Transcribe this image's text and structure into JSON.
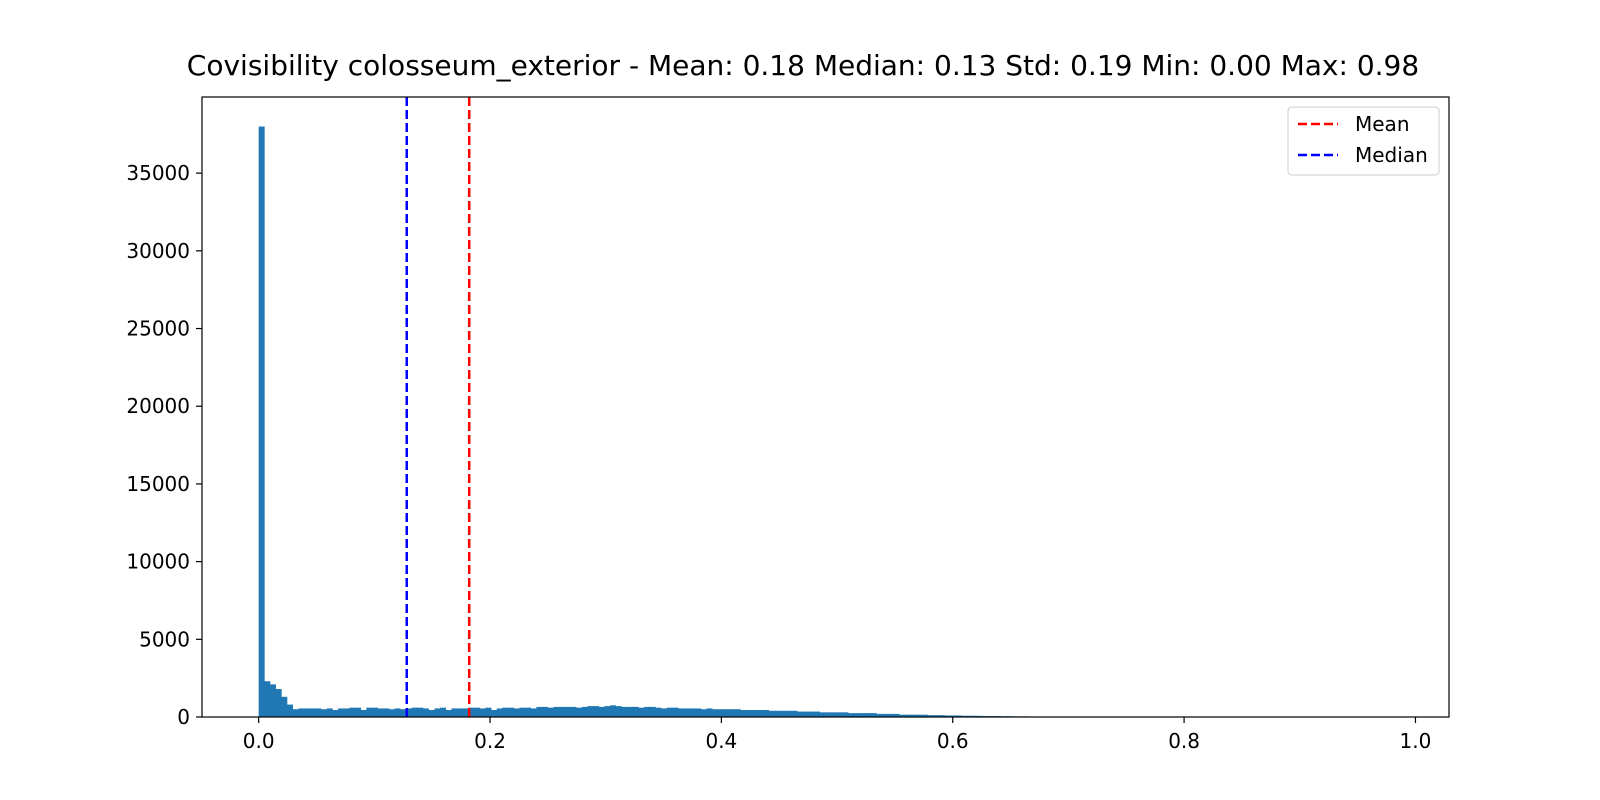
{
  "chart_data": {
    "type": "bar",
    "title": "Covisibility colosseum_exterior - Mean: 0.18 Median: 0.13 Std: 0.19 Min: 0.00 Max: 0.98",
    "xlabel": "",
    "ylabel": "",
    "xlim": [
      -0.049,
      1.029
    ],
    "ylim": [
      0,
      39900
    ],
    "xticks": [
      0.0,
      0.2,
      0.4,
      0.6,
      0.8,
      1.0
    ],
    "xtick_labels": [
      "0.0",
      "0.2",
      "0.4",
      "0.6",
      "0.8",
      "1.0"
    ],
    "yticks": [
      0,
      5000,
      10000,
      15000,
      20000,
      25000,
      30000,
      35000
    ],
    "ytick_labels": [
      "0",
      "5000",
      "10000",
      "15000",
      "20000",
      "25000",
      "30000",
      "35000"
    ],
    "bin_start": 0.0,
    "bin_width": 0.0049,
    "values": [
      38000,
      2300,
      2100,
      1800,
      1300,
      800,
      500,
      550,
      550,
      550,
      550,
      500,
      550,
      450,
      550,
      550,
      600,
      600,
      450,
      600,
      600,
      550,
      550,
      500,
      550,
      500,
      550,
      600,
      600,
      550,
      450,
      550,
      600,
      450,
      550,
      550,
      550,
      600,
      600,
      550,
      600,
      450,
      550,
      600,
      600,
      550,
      600,
      600,
      550,
      650,
      650,
      600,
      650,
      650,
      650,
      650,
      600,
      650,
      700,
      700,
      650,
      700,
      750,
      700,
      650,
      650,
      650,
      600,
      650,
      650,
      600,
      550,
      600,
      600,
      550,
      550,
      550,
      550,
      500,
      550,
      500,
      500,
      500,
      500,
      500,
      450,
      450,
      450,
      450,
      450,
      400,
      400,
      400,
      400,
      400,
      350,
      350,
      350,
      350,
      300,
      300,
      300,
      300,
      300,
      250,
      250,
      250,
      250,
      250,
      200,
      200,
      200,
      200,
      150,
      150,
      150,
      150,
      150,
      120,
      120,
      120,
      100,
      100,
      100,
      80,
      80,
      80,
      70,
      60,
      60,
      60,
      50,
      50,
      40,
      40,
      40,
      30,
      30,
      30,
      25,
      25,
      20,
      20,
      20,
      15,
      15,
      15,
      10,
      10,
      10,
      10,
      8,
      8,
      6,
      6,
      5,
      5,
      4,
      4,
      3,
      3,
      3,
      2,
      2,
      2,
      2,
      1,
      1,
      1,
      1,
      1,
      1,
      1,
      1,
      1,
      1,
      1,
      1,
      1,
      1
    ],
    "bar_color": "#1f77b4",
    "reference_lines": [
      {
        "name": "Mean",
        "x": 0.182,
        "color": "#ff0000",
        "style": "dashed"
      },
      {
        "name": "Median",
        "x": 0.128,
        "color": "#0000ff",
        "style": "dashed"
      }
    ],
    "legend": {
      "placement": "top-right",
      "entries": [
        {
          "label": "Mean",
          "color": "#ff0000"
        },
        {
          "label": "Median",
          "color": "#0000ff"
        }
      ]
    },
    "grid": false
  }
}
